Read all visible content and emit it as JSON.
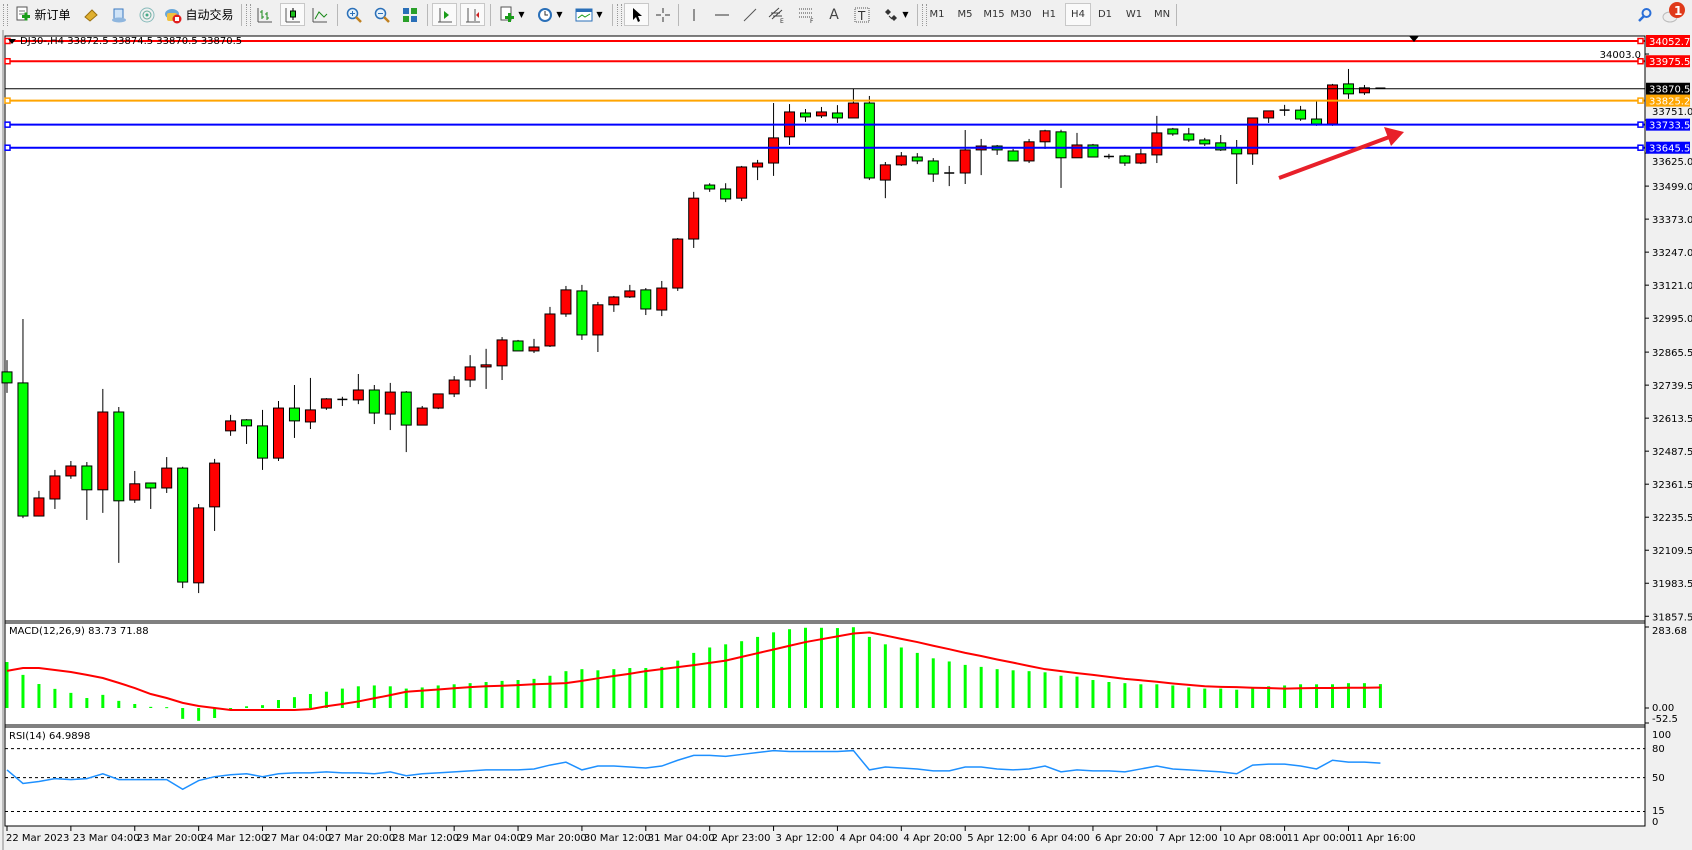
{
  "toolbar": {
    "new_order_label": "新订单",
    "auto_trading_label": "自动交易",
    "timeframes": [
      "M1",
      "M5",
      "M15",
      "M30",
      "H1",
      "H4",
      "D1",
      "W1",
      "MN"
    ],
    "active_timeframe": "H4",
    "notification_count": "1",
    "icons": [
      "new-order-icon",
      "market-watch-icon",
      "navigator-icon",
      "signals-icon",
      "auto-trading-icon",
      "bar-chart-icon",
      "candlestick-icon",
      "line-chart-icon",
      "zoom-in-icon",
      "zoom-out-icon",
      "tile-windows-icon",
      "auto-scroll-icon",
      "chart-shift-icon",
      "indicators-icon",
      "periods-icon",
      "templates-icon",
      "cursor-icon",
      "crosshair-icon",
      "vertical-line-icon",
      "horizontal-line-icon",
      "trendline-icon",
      "equidistant-channel-icon",
      "fibonacci-icon",
      "text-icon",
      "text-label-icon",
      "shapes-icon",
      "search-icon",
      "messages-icon"
    ]
  },
  "chart_info": "DJ30-,H4  33872.5 33874.5 33870.5 33870.5",
  "macd_label": "MACD(12,26,9) 83.73 71.88",
  "rsi_label": "RSI(14) 64.9898",
  "colors": {
    "bull": "#ff0000",
    "bear": "#00ff00",
    "macd_hist": "#00ff00",
    "signal": "#ff0000",
    "rsi": "#1e90ff",
    "resistance": "#ff0000",
    "pivot": "#ffa500",
    "support": "#0000ff",
    "bid": "#000000"
  },
  "chart_data": [
    {
      "type": "candlestick",
      "symbol": "DJ30-",
      "timeframe": "H4",
      "ylim": [
        31857.5,
        34052.7
      ],
      "y_ticks": [
        "34003.0",
        "33751.0",
        "33625.0",
        "33499.0",
        "33373.0",
        "33247.0",
        "33121.0",
        "32995.0",
        "32865.5",
        "32739.5",
        "32613.5",
        "32487.5",
        "32361.5",
        "32235.5",
        "32109.5",
        "31983.5",
        "31857.5"
      ],
      "x_tick_labels": [
        "22 Mar 2023",
        "23 Mar 04:00",
        "23 Mar 20:00",
        "24 Mar 12:00",
        "27 Mar 04:00",
        "27 Mar 20:00",
        "28 Mar 12:00",
        "29 Mar 04:00",
        "29 Mar 20:00",
        "30 Mar 12:00",
        "31 Mar 04:00",
        "2 Apr 23:00",
        "3 Apr 12:00",
        "4 Apr 04:00",
        "4 Apr 20:00",
        "5 Apr 12:00",
        "6 Apr 04:00",
        "6 Apr 20:00",
        "7 Apr 12:00",
        "10 Apr 08:00",
        "11 Apr 00:00",
        "11 Apr 16:00"
      ],
      "x_tick_every_n_bars": 4,
      "ohlc": [
        [
          32790,
          32835,
          32710,
          32748
        ],
        [
          32748,
          32992,
          32232,
          32240
        ],
        [
          32240,
          32336,
          32238,
          32309
        ],
        [
          32305,
          32416,
          32267,
          32393
        ],
        [
          32393,
          32450,
          32382,
          32431
        ],
        [
          32431,
          32446,
          32225,
          32340
        ],
        [
          32340,
          32725,
          32252,
          32637
        ],
        [
          32637,
          32656,
          32061,
          32298
        ],
        [
          32301,
          32412,
          32290,
          32363
        ],
        [
          32366,
          32366,
          32267,
          32347
        ],
        [
          32347,
          32465,
          32328,
          32423
        ],
        [
          32423,
          32428,
          31965,
          31988
        ],
        [
          31985,
          32286,
          31946,
          32271
        ],
        [
          32275,
          32458,
          32183,
          32442
        ],
        [
          32565,
          32626,
          32546,
          32603
        ],
        [
          32607,
          32610,
          32515,
          32584
        ],
        [
          32584,
          32645,
          32416,
          32461
        ],
        [
          32461,
          32679,
          32450,
          32652
        ],
        [
          32652,
          32740,
          32538,
          32603
        ],
        [
          32599,
          32767,
          32572,
          32645
        ],
        [
          32652,
          32690,
          32645,
          32687
        ],
        [
          32683,
          32695,
          32660,
          32685
        ],
        [
          32683,
          32782,
          32667,
          32721
        ],
        [
          32721,
          32740,
          32591,
          32633
        ],
        [
          32629,
          32748,
          32568,
          32713
        ],
        [
          32713,
          32717,
          32484,
          32587
        ],
        [
          32587,
          32660,
          32587,
          32652
        ],
        [
          32652,
          32706,
          32648,
          32706
        ],
        [
          32706,
          32774,
          32694,
          32759
        ],
        [
          32759,
          32854,
          32732,
          32809
        ],
        [
          32809,
          32878,
          32725,
          32817
        ],
        [
          32813,
          32923,
          32759,
          32912
        ],
        [
          32908,
          32912,
          32870,
          32870
        ],
        [
          32870,
          32916,
          32862,
          32885
        ],
        [
          32889,
          33038,
          32885,
          33011
        ],
        [
          33011,
          33118,
          33000,
          33103
        ],
        [
          33099,
          33122,
          32912,
          32931
        ],
        [
          32931,
          33057,
          32866,
          33046
        ],
        [
          33046,
          33080,
          33019,
          33076
        ],
        [
          33076,
          33122,
          33072,
          33099
        ],
        [
          33103,
          33110,
          33007,
          33030
        ],
        [
          33026,
          33137,
          33003,
          33110
        ],
        [
          33110,
          33301,
          33099,
          33297
        ],
        [
          33297,
          33477,
          33263,
          33453
        ],
        [
          33503,
          33510,
          33477,
          33488
        ],
        [
          33488,
          33510,
          33438,
          33450
        ],
        [
          33453,
          33576,
          33442,
          33572
        ],
        [
          33572,
          33599,
          33522,
          33587
        ],
        [
          33587,
          33816,
          33538,
          33683
        ],
        [
          33687,
          33812,
          33656,
          33782
        ],
        [
          33778,
          33793,
          33744,
          33763
        ],
        [
          33767,
          33801,
          33759,
          33782
        ],
        [
          33778,
          33808,
          33740,
          33759
        ],
        [
          33759,
          33870,
          33759,
          33816
        ],
        [
          33816,
          33843,
          33522,
          33530
        ],
        [
          33522,
          33591,
          33453,
          33580
        ],
        [
          33580,
          33629,
          33576,
          33614
        ],
        [
          33610,
          33625,
          33583,
          33595
        ],
        [
          33595,
          33606,
          33515,
          33545
        ],
        [
          33549,
          33576,
          33499,
          33549
        ],
        [
          33549,
          33713,
          33507,
          33637
        ],
        [
          33637,
          33679,
          33541,
          33652
        ],
        [
          33652,
          33656,
          33618,
          33637
        ],
        [
          33633,
          33641,
          33595,
          33595
        ],
        [
          33595,
          33679,
          33587,
          33668
        ],
        [
          33668,
          33714,
          33641,
          33710
        ],
        [
          33706,
          33714,
          33492,
          33607
        ],
        [
          33607,
          33702,
          33607,
          33656
        ],
        [
          33656,
          33660,
          33610,
          33610
        ],
        [
          33612,
          33622,
          33603,
          33610
        ],
        [
          33614,
          33618,
          33576,
          33587
        ],
        [
          33587,
          33641,
          33583,
          33622
        ],
        [
          33618,
          33767,
          33587,
          33702
        ],
        [
          33717,
          33721,
          33691,
          33698
        ],
        [
          33698,
          33721,
          33668,
          33675
        ],
        [
          33675,
          33683,
          33652,
          33660
        ],
        [
          33664,
          33694,
          33633,
          33637
        ],
        [
          33645,
          33675,
          33507,
          33622
        ],
        [
          33622,
          33759,
          33580,
          33759
        ],
        [
          33759,
          33786,
          33740,
          33786
        ],
        [
          33786,
          33809,
          33767,
          33789
        ],
        [
          33789,
          33805,
          33748,
          33755
        ],
        [
          33755,
          33824,
          33729,
          33736
        ],
        [
          33736,
          33889,
          33729,
          33885
        ],
        [
          33889,
          33946,
          33832,
          33851
        ],
        [
          33855,
          33885,
          33847,
          33874
        ],
        [
          33872.5,
          33874.5,
          33870.5,
          33870.5
        ]
      ],
      "horizontal_lines": [
        {
          "price": "34052.7",
          "role": "resistance",
          "color": "#ff0000"
        },
        {
          "price": "33975.5",
          "role": "resistance",
          "color": "#ff0000"
        },
        {
          "price": "33870.5",
          "role": "bid",
          "color": "#000000"
        },
        {
          "price": "33825.2",
          "role": "pivot",
          "color": "#ffa500"
        },
        {
          "price": "33733.5",
          "role": "support",
          "color": "#0000ff"
        },
        {
          "price": "33645.5",
          "role": "support",
          "color": "#0000ff"
        }
      ],
      "annotation": "red-arrow-up"
    },
    {
      "type": "bar+line",
      "indicator": "MACD(12,26,9)",
      "ylim": [
        -52.5,
        283.68
      ],
      "y_ticks": [
        "283.68",
        "0.00",
        "-52.5"
      ],
      "histogram": [
        161,
        116,
        84,
        67,
        53,
        35,
        46,
        25,
        14,
        4,
        3,
        -38,
        -45,
        -35,
        -2,
        6,
        10,
        28,
        38,
        49,
        57,
        68,
        76,
        79,
        76,
        68,
        72,
        79,
        83,
        87,
        91,
        95,
        98,
        102,
        113,
        129,
        136,
        132,
        136,
        140,
        140,
        144,
        166,
        193,
        212,
        223,
        234,
        249,
        265,
        276,
        281,
        281,
        280,
        283,
        249,
        223,
        212,
        193,
        174,
        163,
        151,
        144,
        136,
        132,
        129,
        125,
        113,
        110,
        98,
        91,
        87,
        83,
        83,
        79,
        72,
        68,
        68,
        64,
        72,
        76,
        79,
        83,
        83,
        83,
        87,
        87,
        83.73
      ],
      "signal": [
        130,
        140,
        140,
        133,
        126,
        116,
        105,
        88,
        70,
        49,
        35,
        18,
        7,
        0,
        -7,
        -7,
        -7,
        -7,
        -7,
        -4,
        6,
        14,
        23,
        34,
        45,
        57,
        61,
        65,
        69,
        73,
        76,
        78,
        80,
        83,
        85,
        87,
        95,
        104,
        112,
        120,
        129,
        136,
        143,
        150,
        158,
        166,
        179,
        192,
        205,
        218,
        231,
        241,
        251,
        261,
        265,
        254,
        242,
        231,
        218,
        206,
        193,
        182,
        170,
        159,
        147,
        136,
        129,
        122,
        116,
        109,
        102,
        97,
        92,
        86,
        81,
        76,
        74,
        73,
        71,
        70,
        68,
        69,
        70,
        70,
        71,
        71,
        71.88
      ]
    },
    {
      "type": "line",
      "indicator": "RSI(14)",
      "ylim": [
        0,
        100
      ],
      "y_ticks": [
        "100",
        "80",
        "50",
        "15",
        "0"
      ],
      "levels": [
        80,
        50,
        15
      ],
      "values": [
        58,
        44,
        46,
        49,
        48,
        49,
        54,
        48,
        48,
        48,
        48,
        38,
        47,
        51,
        53,
        54,
        51,
        54,
        55,
        55,
        56,
        55,
        55,
        54,
        56,
        52,
        54,
        55,
        56,
        57,
        58,
        58,
        58,
        59,
        63,
        66,
        58,
        62,
        62,
        61,
        60,
        62,
        68,
        73,
        73,
        72,
        74,
        76,
        78,
        77,
        77,
        77,
        77,
        78,
        58,
        61,
        60,
        59,
        57,
        57,
        61,
        61,
        59,
        58,
        59,
        62,
        56,
        58,
        57,
        57,
        56,
        59,
        62,
        59,
        58,
        57,
        56,
        54,
        63,
        64,
        64,
        62,
        59,
        68,
        66,
        66,
        64.9898
      ]
    }
  ]
}
